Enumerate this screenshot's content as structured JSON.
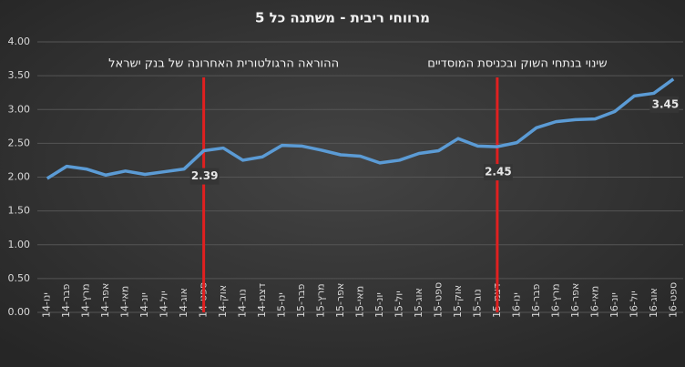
{
  "chart_data": {
    "type": "line",
    "title": "מרווחי ריבית - משתנה כל 5",
    "categories": [
      "ינו-14",
      "פבר-14",
      "מרץ-14",
      "אפר-14",
      "מאי-14",
      "יונ-14",
      "יול-14",
      "אוג-14",
      "ספט-14",
      "אוק-14",
      "נוב-14",
      "דצמ-14",
      "ינו-15",
      "פבר-15",
      "מרץ-15",
      "אפר-15",
      "מאי-15",
      "יונ-15",
      "יול-15",
      "אוג-15",
      "ספט-15",
      "אוק-15",
      "נוב-15",
      "דצמ-15",
      "ינו-16",
      "פבר-16",
      "מרץ-16",
      "אפר-16",
      "מאי-16",
      "יונ-16",
      "יול-16",
      "אוג-16",
      "ספט-16"
    ],
    "series": [
      {
        "color": "#5b9bd5",
        "values": [
          1.98,
          2.16,
          2.12,
          2.03,
          2.09,
          2.04,
          2.08,
          2.12,
          2.39,
          2.43,
          2.25,
          2.3,
          2.47,
          2.46,
          2.4,
          2.33,
          2.31,
          2.21,
          2.25,
          2.35,
          2.39,
          2.57,
          2.46,
          2.45,
          2.51,
          2.73,
          2.82,
          2.85,
          2.86,
          2.97,
          3.2,
          3.24,
          3.45
        ],
        "value_labels": [
          null,
          null,
          null,
          null,
          null,
          null,
          null,
          null,
          "2.39",
          null,
          null,
          null,
          null,
          null,
          null,
          null,
          null,
          null,
          null,
          null,
          null,
          null,
          null,
          "2.45",
          null,
          null,
          null,
          null,
          null,
          null,
          null,
          null,
          "3.45"
        ]
      }
    ],
    "ylim": [
      0,
      4
    ],
    "yticks": [
      {
        "value": 0,
        "label": "0.00"
      },
      {
        "value": 0.5,
        "label": "0.50"
      },
      {
        "value": 1,
        "label": "1.00"
      },
      {
        "value": 1.5,
        "label": "1.50"
      },
      {
        "value": 2,
        "label": "2.00"
      },
      {
        "value": 2.5,
        "label": "2.50"
      },
      {
        "value": 3,
        "label": "3.00"
      },
      {
        "value": 3.5,
        "label": "3.50"
      },
      {
        "value": 4,
        "label": "4.00"
      }
    ],
    "grid": true,
    "markers": [
      {
        "category": "ספט-14",
        "text": "ההוראה הרגולטורית האחרונה של בנק ישראל",
        "color": "#e02020"
      },
      {
        "category": "דצמ-15",
        "text": "שינוי בנתחי השוק ובכניסת המוסדיים",
        "color": "#e02020"
      }
    ]
  }
}
